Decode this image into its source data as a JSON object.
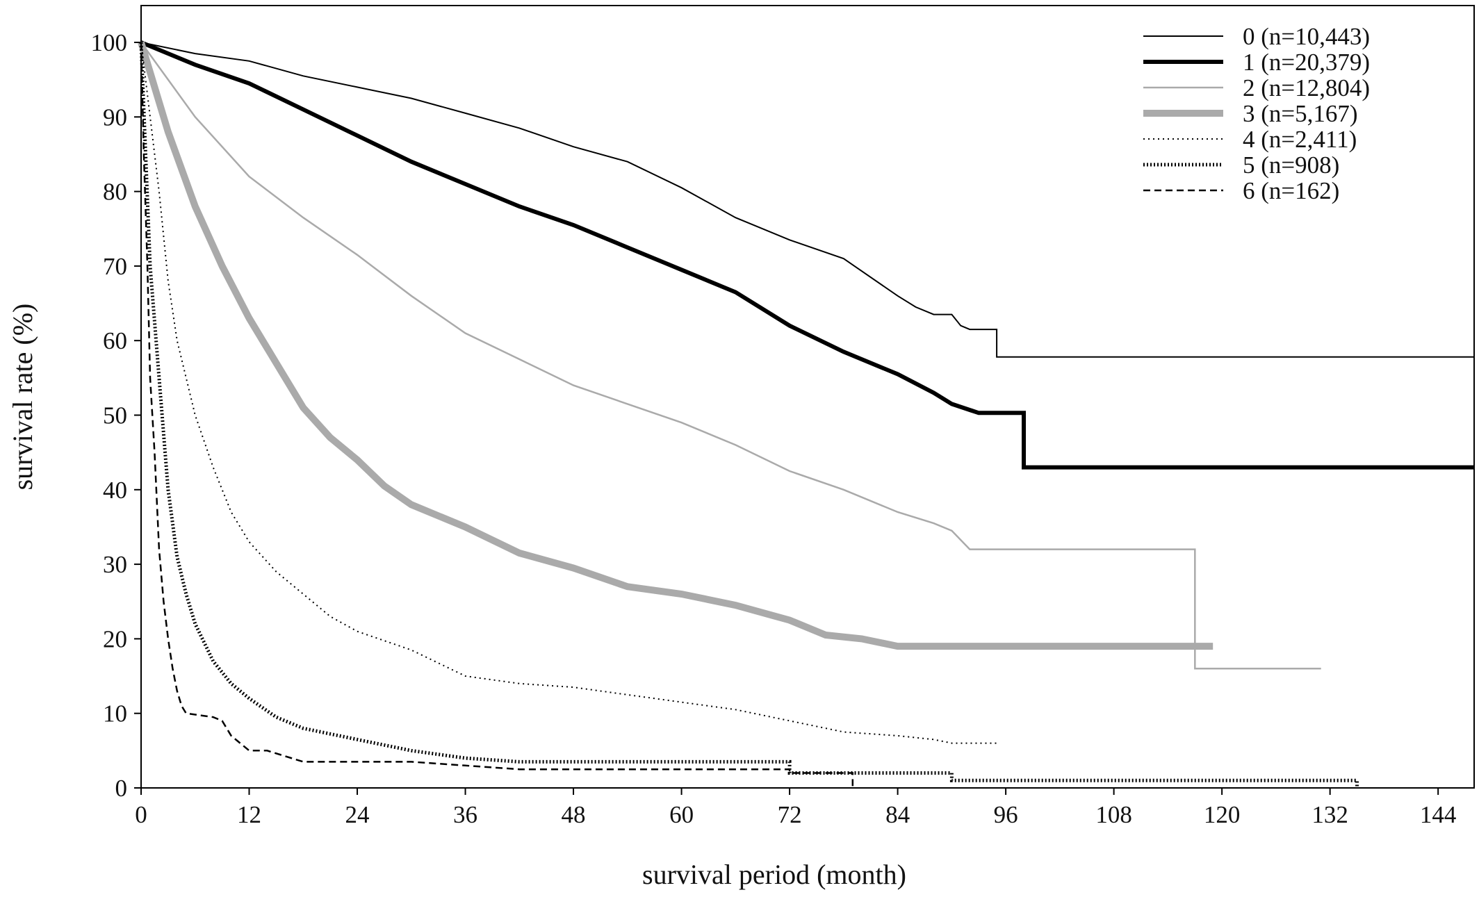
{
  "chart_data": {
    "type": "line",
    "title": "",
    "xlabel": "survival period (month)",
    "ylabel": "survival rate (%)",
    "xlim": [
      0,
      148
    ],
    "ylim": [
      0,
      105
    ],
    "x_ticks": [
      0,
      12,
      24,
      36,
      48,
      60,
      72,
      84,
      96,
      108,
      120,
      132,
      144
    ],
    "y_ticks": [
      0,
      10,
      20,
      30,
      40,
      50,
      60,
      70,
      80,
      90,
      100
    ],
    "grid": false,
    "legend_position": "top-right",
    "series": [
      {
        "name": "0 (n=10,443)",
        "style": "solid-thin",
        "color": "#000000",
        "points": [
          [
            0,
            100
          ],
          [
            6,
            98.5
          ],
          [
            12,
            97.5
          ],
          [
            18,
            95.5
          ],
          [
            24,
            94
          ],
          [
            30,
            92.5
          ],
          [
            36,
            90.5
          ],
          [
            42,
            88.5
          ],
          [
            48,
            86
          ],
          [
            54,
            84
          ],
          [
            60,
            80.5
          ],
          [
            66,
            76.5
          ],
          [
            72,
            73.5
          ],
          [
            78,
            71
          ],
          [
            84,
            66
          ],
          [
            86,
            64.5
          ],
          [
            88,
            63.5
          ],
          [
            90,
            63.5
          ],
          [
            91,
            62
          ],
          [
            92,
            61.5
          ],
          [
            95,
            61.5
          ],
          [
            95,
            57.8
          ],
          [
            148,
            57.8
          ]
        ]
      },
      {
        "name": "1 (n=20,379)",
        "style": "solid-thick",
        "color": "#000000",
        "points": [
          [
            0,
            100
          ],
          [
            6,
            97
          ],
          [
            12,
            94.5
          ],
          [
            18,
            91
          ],
          [
            24,
            87.5
          ],
          [
            30,
            84
          ],
          [
            36,
            81
          ],
          [
            42,
            78
          ],
          [
            48,
            75.5
          ],
          [
            54,
            72.5
          ],
          [
            60,
            69.5
          ],
          [
            66,
            66.5
          ],
          [
            72,
            62
          ],
          [
            78,
            58.5
          ],
          [
            84,
            55.5
          ],
          [
            88,
            53
          ],
          [
            90,
            51.5
          ],
          [
            93,
            50.3
          ],
          [
            98,
            50.3
          ],
          [
            98,
            43
          ],
          [
            148,
            43
          ]
        ]
      },
      {
        "name": "2 (n=12,804)",
        "style": "solid-gray",
        "color": "#aaaaaa",
        "points": [
          [
            0,
            100
          ],
          [
            6,
            90
          ],
          [
            12,
            82
          ],
          [
            18,
            76.5
          ],
          [
            24,
            71.5
          ],
          [
            30,
            66
          ],
          [
            36,
            61
          ],
          [
            42,
            57.5
          ],
          [
            48,
            54
          ],
          [
            54,
            51.5
          ],
          [
            60,
            49
          ],
          [
            66,
            46
          ],
          [
            72,
            42.5
          ],
          [
            78,
            40
          ],
          [
            84,
            37
          ],
          [
            88,
            35.5
          ],
          [
            90,
            34.5
          ],
          [
            92,
            32
          ],
          [
            94,
            32
          ],
          [
            117,
            32
          ],
          [
            117,
            16
          ],
          [
            131,
            16
          ]
        ]
      },
      {
        "name": "3 (n=5,167)",
        "style": "solid-gray-thick",
        "color": "#aaaaaa",
        "points": [
          [
            0,
            100
          ],
          [
            3,
            88
          ],
          [
            6,
            78
          ],
          [
            9,
            70
          ],
          [
            12,
            63
          ],
          [
            15,
            57
          ],
          [
            18,
            51
          ],
          [
            21,
            47
          ],
          [
            24,
            44
          ],
          [
            27,
            40.5
          ],
          [
            30,
            38
          ],
          [
            36,
            35
          ],
          [
            42,
            31.5
          ],
          [
            48,
            29.5
          ],
          [
            54,
            27
          ],
          [
            60,
            26
          ],
          [
            66,
            24.5
          ],
          [
            72,
            22.5
          ],
          [
            76,
            20.5
          ],
          [
            80,
            20
          ],
          [
            84,
            19
          ],
          [
            119,
            19
          ]
        ]
      },
      {
        "name": "4 (n=2,411)",
        "style": "dotted-thin",
        "color": "#000000",
        "points": [
          [
            0,
            100
          ],
          [
            1,
            90
          ],
          [
            2,
            80
          ],
          [
            3,
            68
          ],
          [
            4,
            60
          ],
          [
            6,
            50
          ],
          [
            8,
            43
          ],
          [
            10,
            37
          ],
          [
            12,
            33
          ],
          [
            15,
            29
          ],
          [
            18,
            26
          ],
          [
            21,
            23
          ],
          [
            24,
            21
          ],
          [
            30,
            18.5
          ],
          [
            36,
            15
          ],
          [
            42,
            14
          ],
          [
            48,
            13.5
          ],
          [
            54,
            12.5
          ],
          [
            60,
            11.5
          ],
          [
            66,
            10.5
          ],
          [
            72,
            9
          ],
          [
            78,
            7.5
          ],
          [
            84,
            7
          ],
          [
            88,
            6.5
          ],
          [
            90,
            6
          ],
          [
            95,
            6
          ]
        ]
      },
      {
        "name": "5 (n=908)",
        "style": "dotted-thick",
        "color": "#000000",
        "points": [
          [
            0,
            100
          ],
          [
            0.5,
            85
          ],
          [
            1,
            70
          ],
          [
            2,
            55
          ],
          [
            3,
            40
          ],
          [
            4,
            31
          ],
          [
            5,
            26
          ],
          [
            6,
            22
          ],
          [
            8,
            17
          ],
          [
            10,
            14
          ],
          [
            12,
            12
          ],
          [
            15,
            9.5
          ],
          [
            18,
            8
          ],
          [
            24,
            6.5
          ],
          [
            30,
            5
          ],
          [
            36,
            4
          ],
          [
            42,
            3.5
          ],
          [
            48,
            3.5
          ],
          [
            60,
            3.5
          ],
          [
            72,
            3.5
          ],
          [
            72,
            2
          ],
          [
            90,
            2
          ],
          [
            90,
            1
          ],
          [
            135,
            1
          ],
          [
            135,
            0
          ]
        ]
      },
      {
        "name": "6 (n=162)",
        "style": "dashed",
        "color": "#000000",
        "points": [
          [
            0,
            100
          ],
          [
            0.3,
            85
          ],
          [
            0.7,
            70
          ],
          [
            1,
            55
          ],
          [
            1.5,
            45
          ],
          [
            2,
            32
          ],
          [
            2.5,
            25
          ],
          [
            3,
            20
          ],
          [
            3.5,
            16
          ],
          [
            4,
            13
          ],
          [
            4.5,
            11
          ],
          [
            5,
            10
          ],
          [
            8,
            9.5
          ],
          [
            9,
            9
          ],
          [
            10,
            7
          ],
          [
            12,
            5
          ],
          [
            14,
            5
          ],
          [
            18,
            3.5
          ],
          [
            24,
            3.5
          ],
          [
            30,
            3.5
          ],
          [
            36,
            3
          ],
          [
            42,
            2.5
          ],
          [
            72,
            2.5
          ],
          [
            72,
            2
          ],
          [
            79,
            2
          ],
          [
            79,
            0
          ]
        ]
      }
    ]
  }
}
